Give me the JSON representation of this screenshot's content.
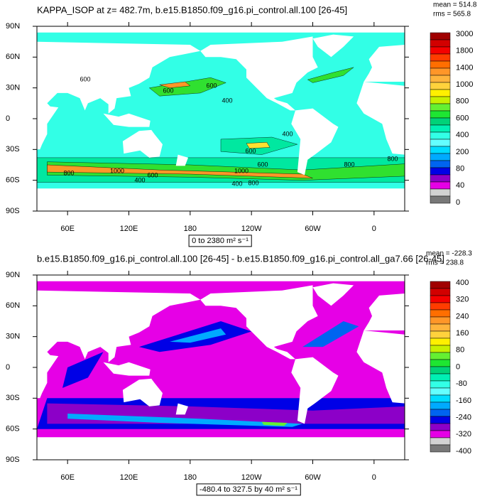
{
  "panels": [
    {
      "title": "KAPPA_ISOP at z= 482.7m, b.e15.B1850.f09_g16.pi_control.all.100 [26-45]",
      "mean": "mean = 514.8",
      "rms": "rms = 565.8",
      "subtitle": "0 to 2380 m² s⁻¹",
      "contour_labels": [
        "600",
        "600",
        "600",
        "400",
        "400",
        "600",
        "1000",
        "800",
        "600",
        "400",
        "1000",
        "600",
        "400",
        "800",
        "800",
        "800"
      ],
      "colorbar": {
        "labels": [
          3000,
          1800,
          1400,
          1000,
          800,
          600,
          400,
          200,
          80,
          40,
          0
        ],
        "colors": [
          "#a00000",
          "#d20000",
          "#f50000",
          "#ff3c00",
          "#ff6e00",
          "#ff9628",
          "#ffb43c",
          "#ffd23c",
          "#fff000",
          "#c8f000",
          "#64f032",
          "#1ee632",
          "#00d278",
          "#00f0b4",
          "#32ffe6",
          "#64ffff",
          "#00dcff",
          "#00aaff",
          "#0064f0",
          "#0000e6",
          "#8c00c8",
          "#e600e6",
          "#d2d2d2",
          "#787878"
        ]
      }
    },
    {
      "title": "b.e15.B1850.f09_g16.pi_control.all.100 [26-45] - b.e15.B1850.f09_g16.pi_control.all_ga7.66 [26-45]",
      "mean": "mean = -228.3",
      "rms": "rms = 238.8",
      "subtitle": "-480.4 to 327.5 by 40 m² s⁻¹",
      "contour_labels": [],
      "colorbar": {
        "labels": [
          400,
          320,
          240,
          160,
          80,
          0,
          -80,
          -160,
          -240,
          -320,
          -400
        ],
        "colors": [
          "#a00000",
          "#d20000",
          "#f50000",
          "#ff3c00",
          "#ff6e00",
          "#ff9628",
          "#ffb43c",
          "#ffd23c",
          "#fff000",
          "#c8f000",
          "#64f032",
          "#1ee632",
          "#00d278",
          "#00f0b4",
          "#32ffe6",
          "#64ffff",
          "#00dcff",
          "#00aaff",
          "#0064f0",
          "#0000e6",
          "#8c00c8",
          "#e600e6",
          "#d2d2d2",
          "#787878"
        ]
      }
    }
  ],
  "lat_labels": [
    "90N",
    "60N",
    "30N",
    "0",
    "30S",
    "60S",
    "90S"
  ],
  "lon_labels": [
    "60E",
    "120E",
    "180",
    "120W",
    "60W",
    "0"
  ]
}
